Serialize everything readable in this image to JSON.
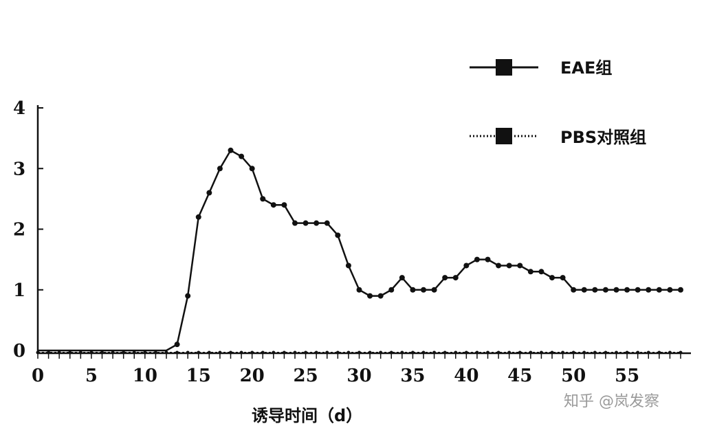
{
  "chart_data": {
    "type": "line",
    "xlabel": "诱导时间（d）",
    "ylabel": "",
    "xlim": [
      0,
      60
    ],
    "ylim": [
      0,
      4
    ],
    "x_ticks": [
      0,
      5,
      10,
      15,
      20,
      25,
      30,
      35,
      40,
      45,
      50,
      55
    ],
    "y_ticks": [
      0,
      1,
      2,
      3,
      4
    ],
    "legend_position": "top-right",
    "series": [
      {
        "name": "EAE组",
        "x": [
          0,
          1,
          2,
          3,
          4,
          5,
          6,
          7,
          8,
          9,
          10,
          11,
          12,
          13,
          14,
          15,
          16,
          17,
          18,
          19,
          20,
          21,
          22,
          23,
          24,
          25,
          26,
          27,
          28,
          29,
          30,
          31,
          32,
          33,
          34,
          35,
          36,
          37,
          38,
          39,
          40,
          41,
          42,
          43,
          44,
          45,
          46,
          47,
          48,
          49,
          50,
          51,
          52,
          53,
          54,
          55,
          56,
          57,
          58,
          59,
          60
        ],
        "values": [
          0,
          0,
          0,
          0,
          0,
          0,
          0,
          0,
          0,
          0,
          0,
          0,
          0,
          0.1,
          0.9,
          2.2,
          2.6,
          3.0,
          3.3,
          3.2,
          3.0,
          2.5,
          2.4,
          2.4,
          2.1,
          2.1,
          2.1,
          2.1,
          1.9,
          1.4,
          1.0,
          0.9,
          0.9,
          1.0,
          1.2,
          1.0,
          1.0,
          1.0,
          1.2,
          1.2,
          1.4,
          1.5,
          1.5,
          1.4,
          1.4,
          1.4,
          1.3,
          1.3,
          1.2,
          1.2,
          1.0,
          1.0,
          1.0,
          1.0,
          1.0,
          1.0,
          1.0,
          1.0,
          1.0,
          1.0,
          1.0
        ]
      },
      {
        "name": "PBS对照组",
        "x": [
          0,
          1,
          2,
          3,
          4,
          5,
          6,
          7,
          8,
          9,
          10,
          11,
          12,
          13,
          14,
          15,
          16,
          17,
          18,
          19,
          20,
          21,
          22,
          23,
          24,
          25,
          26,
          27,
          28,
          29,
          30,
          31,
          32,
          33,
          34,
          35,
          36,
          37,
          38,
          39,
          40,
          41,
          42,
          43,
          44,
          45,
          46,
          47,
          48,
          49,
          50,
          51,
          52,
          53,
          54,
          55,
          56,
          57,
          58,
          59,
          60
        ],
        "values": [
          0,
          0,
          0,
          0,
          0,
          0,
          0,
          0,
          0,
          0,
          0,
          0,
          0,
          0,
          0,
          0,
          0,
          0,
          0,
          0,
          0,
          0,
          0,
          0,
          0,
          0,
          0,
          0,
          0,
          0,
          0,
          0,
          0,
          0,
          0,
          0,
          0,
          0,
          0,
          0,
          0,
          0,
          0,
          0,
          0,
          0,
          0,
          0,
          0,
          0,
          0,
          0,
          0,
          0,
          0,
          0,
          0,
          0,
          0,
          0,
          0
        ]
      }
    ]
  },
  "watermark": "知乎 @岚发察"
}
